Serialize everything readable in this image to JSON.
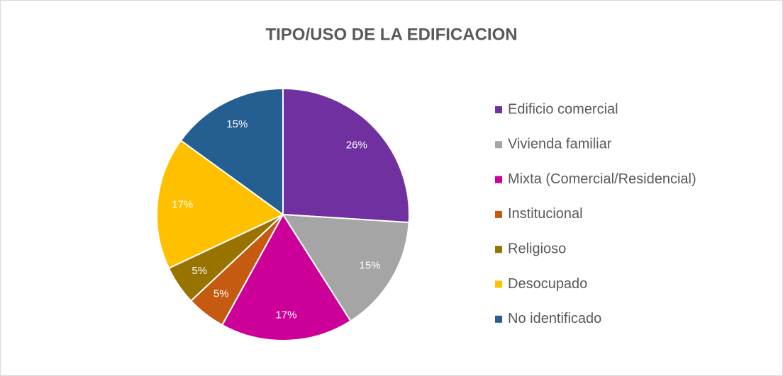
{
  "chart_data": {
    "type": "pie",
    "title": "TIPO/USO DE LA EDIFICACION",
    "categories": [
      "Edificio comercial",
      "Vivienda familiar",
      "Mixta (Comercial/Residencial)",
      "Institucional",
      "Religioso",
      "Desocupado",
      "No identificado"
    ],
    "values": [
      26,
      15,
      17,
      5,
      5,
      17,
      15
    ],
    "value_labels": [
      "26%",
      "15%",
      "17%",
      "5%",
      "5%",
      "17%",
      "15%"
    ],
    "colors": [
      "#7030a0",
      "#a5a5a5",
      "#cc0099",
      "#c55a11",
      "#997300",
      "#ffc000",
      "#255e91"
    ],
    "legend": "right"
  }
}
